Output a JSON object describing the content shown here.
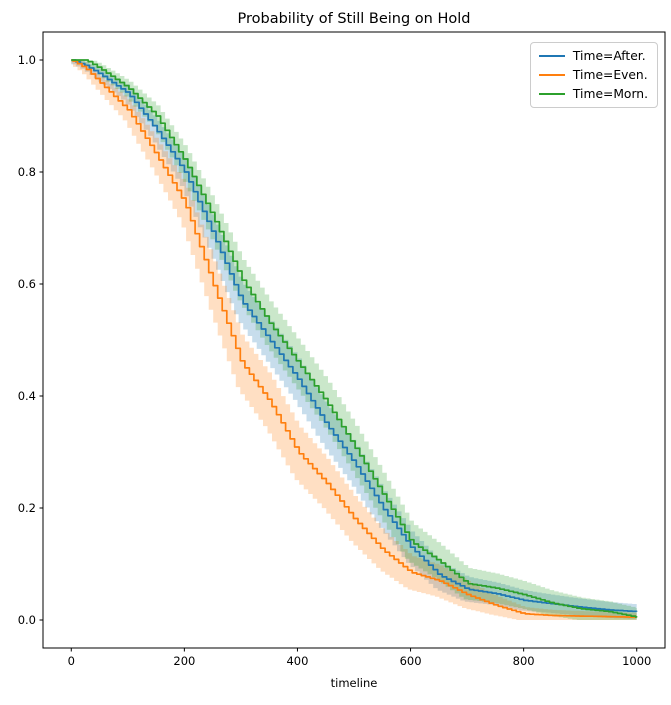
{
  "chart_data": {
    "type": "line",
    "subtype": "kaplan-meier-step-with-confidence-bands",
    "title": "Probability of Still Being on Hold",
    "xlabel": "timeline",
    "ylabel": "",
    "xlim": [
      -50,
      1050
    ],
    "ylim": [
      -0.05,
      1.05
    ],
    "grid": false,
    "legend_position": "upper right",
    "x_ticks": [
      0,
      200,
      400,
      600,
      800,
      1000
    ],
    "x_tick_labels": [
      "0",
      "200",
      "400",
      "600",
      "800",
      "1000"
    ],
    "y_ticks": [
      0.0,
      0.2,
      0.4,
      0.6,
      0.8,
      1.0
    ],
    "y_tick_labels": [
      "0.0",
      "0.2",
      "0.4",
      "0.6",
      "0.8",
      "1.0"
    ],
    "x": [
      0,
      25,
      50,
      100,
      150,
      200,
      250,
      300,
      350,
      400,
      450,
      500,
      550,
      600,
      650,
      700,
      750,
      800,
      850,
      900,
      950,
      1000
    ],
    "series": [
      {
        "name": "Time=After.",
        "color": "#1f77b4",
        "values": [
          1.0,
          0.99,
          0.975,
          0.94,
          0.875,
          0.8,
          0.69,
          0.57,
          0.5,
          0.43,
          0.35,
          0.28,
          0.2,
          0.13,
          0.08,
          0.055,
          0.047,
          0.035,
          0.029,
          0.023,
          0.018,
          0.015
        ],
        "band_halfwidth": [
          0.004,
          0.006,
          0.009,
          0.014,
          0.019,
          0.025,
          0.03,
          0.034,
          0.036,
          0.037,
          0.037,
          0.036,
          0.033,
          0.028,
          0.025,
          0.022,
          0.02,
          0.018,
          0.016,
          0.015,
          0.014,
          0.013
        ]
      },
      {
        "name": "Time=Even.",
        "color": "#ff7f0e",
        "values": [
          1.0,
          0.985,
          0.96,
          0.91,
          0.83,
          0.745,
          0.6,
          0.46,
          0.39,
          0.3,
          0.245,
          0.18,
          0.125,
          0.085,
          0.07,
          0.045,
          0.026,
          0.011,
          0.008,
          0.007,
          0.006,
          0.005
        ],
        "band_halfwidth": [
          0.004,
          0.008,
          0.012,
          0.019,
          0.027,
          0.035,
          0.043,
          0.047,
          0.048,
          0.047,
          0.044,
          0.04,
          0.035,
          0.03,
          0.028,
          0.024,
          0.017,
          0.012,
          0.01,
          0.009,
          0.008,
          0.008
        ]
      },
      {
        "name": "Time=Morn.",
        "color": "#2ca02c",
        "values": [
          1.0,
          1.0,
          0.985,
          0.95,
          0.9,
          0.82,
          0.72,
          0.61,
          0.53,
          0.46,
          0.39,
          0.31,
          0.225,
          0.14,
          0.105,
          0.065,
          0.057,
          0.045,
          0.03,
          0.02,
          0.015,
          0.005
        ],
        "band_halfwidth": [
          0.003,
          0.005,
          0.008,
          0.013,
          0.019,
          0.025,
          0.031,
          0.036,
          0.039,
          0.04,
          0.04,
          0.04,
          0.038,
          0.034,
          0.031,
          0.028,
          0.026,
          0.024,
          0.022,
          0.02,
          0.018,
          0.016
        ]
      }
    ]
  }
}
